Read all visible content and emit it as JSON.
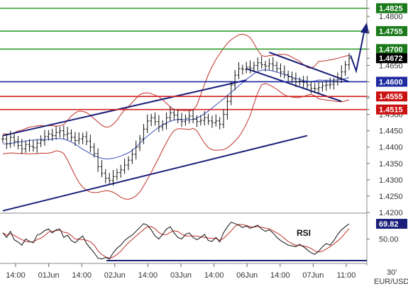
{
  "chart_data": {
    "type": "candlestick",
    "pair": "EUR/USD",
    "timeframe": "30'",
    "price_axis": {
      "range": [
        1.42,
        1.4835
      ],
      "tick_labels": [
        "1.4825",
        "1.4800",
        "1.4755",
        "1.4750",
        "1.4700",
        "1.4672",
        "1.4650",
        "1.4600",
        "1.4555",
        "1.4550",
        "1.4515",
        "1.4500",
        "1.4450",
        "1.4400",
        "1.4350",
        "1.4300",
        "1.4250",
        "1.4200"
      ]
    },
    "levels": [
      {
        "name": "resistance-1",
        "value": 1.4825,
        "label": "1.4825",
        "color": "#1a7a1a",
        "line": "#2e9e2e"
      },
      {
        "name": "resistance-2",
        "value": 1.4755,
        "label": "1.4755",
        "color": "#1a7a1a",
        "line": "#2e9e2e"
      },
      {
        "name": "resistance-3",
        "value": 1.47,
        "label": "1.4700",
        "color": "#1a7a1a",
        "line": "#2e9e2e"
      },
      {
        "name": "pivot",
        "value": 1.46,
        "label": "1.4600",
        "color": "#1e2aa0",
        "line": "#1e2aa0"
      },
      {
        "name": "support-1",
        "value": 1.4555,
        "label": "1.4555",
        "color": "#cc1111",
        "line": "#d42020"
      },
      {
        "name": "support-2",
        "value": 1.4515,
        "label": "1.4515",
        "color": "#cc1111",
        "line": "#d42020"
      }
    ],
    "last_price": {
      "value": 1.4672,
      "label": "1.4672"
    },
    "x_axis": {
      "tick_labels": [
        "14:00",
        "01Jun",
        "14:00",
        "02Jun",
        "14:00",
        "03Jun",
        "14:00",
        "06Jun",
        "14:00",
        "07Jun",
        "11:00"
      ]
    },
    "price_series": [
      1.4425,
      1.441,
      1.443,
      1.4418,
      1.4405,
      1.4395,
      1.4408,
      1.4402,
      1.4398,
      1.4412,
      1.442,
      1.4432,
      1.444,
      1.4435,
      1.4445,
      1.445,
      1.4438,
      1.4442,
      1.443,
      1.442,
      1.4425,
      1.4432,
      1.4418,
      1.44,
      1.438,
      1.434,
      1.432,
      1.4305,
      1.4298,
      1.431,
      1.4322,
      1.433,
      1.4345,
      1.436,
      1.4378,
      1.44,
      1.4425,
      1.4455,
      1.448,
      1.449,
      1.4478,
      1.4462,
      1.447,
      1.449,
      1.4505,
      1.4498,
      1.4485,
      1.4478,
      1.4488,
      1.4495,
      1.4485,
      1.4478,
      1.4482,
      1.449,
      1.448,
      1.4475,
      1.448,
      1.447,
      1.45,
      1.454,
      1.459,
      1.462,
      1.464,
      1.4638,
      1.4645,
      1.4642,
      1.465,
      1.4658,
      1.4652,
      1.4648,
      1.4655,
      1.465,
      1.464,
      1.463,
      1.4622,
      1.4615,
      1.4608,
      1.46,
      1.4602,
      1.4598,
      1.459,
      1.458,
      1.4578,
      1.4582,
      1.4588,
      1.459,
      1.4592,
      1.46,
      1.4612,
      1.463,
      1.4652,
      1.4672
    ],
    "indicator": {
      "name": "RSI",
      "label": "RSI",
      "last_value": 69.82,
      "last_label": "69.82",
      "tick_labels": [
        "50.00"
      ],
      "range": [
        20,
        80
      ],
      "values": [
        58,
        52,
        60,
        49,
        46,
        42,
        50,
        47,
        45,
        55,
        57,
        61,
        63,
        58,
        62,
        63,
        52,
        55,
        48,
        45,
        50,
        54,
        44,
        38,
        32,
        25,
        24,
        26,
        24,
        32,
        38,
        42,
        48,
        52,
        55,
        60,
        65,
        70,
        68,
        62,
        54,
        50,
        56,
        63,
        66,
        58,
        52,
        50,
        56,
        58,
        52,
        49,
        52,
        56,
        48,
        47,
        52,
        46,
        58,
        66,
        72,
        70,
        68,
        65,
        67,
        64,
        66,
        68,
        63,
        60,
        62,
        58,
        52,
        48,
        45,
        42,
        41,
        40,
        43,
        40,
        36,
        32,
        30,
        34,
        40,
        44,
        42,
        48,
        56,
        62,
        66,
        69.82
      ]
    },
    "grid": false
  }
}
